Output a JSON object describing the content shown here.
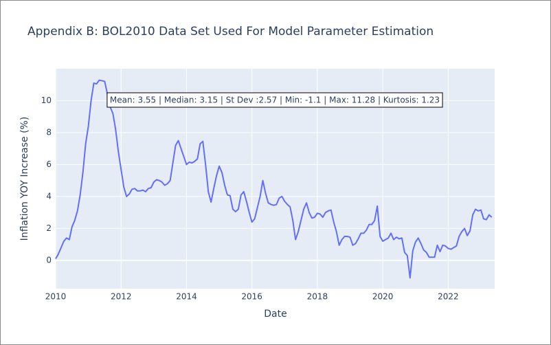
{
  "chart_data": {
    "type": "line",
    "title": "Appendix B: BOL2010 Data Set Used For Model Parameter Estimation",
    "x_label": "Date",
    "y_label": "Inflation YOY Increase (%)",
    "annotation": "Mean: 3.55 | Median: 3.15 | St Dev :2.57 | Min: -1.1 | Max: 11.28 | Kurtosis: 1.23",
    "x": [
      2010,
      2010.083,
      2010.167,
      2010.25,
      2010.333,
      2010.417,
      2010.5,
      2010.583,
      2010.667,
      2010.75,
      2010.833,
      2010.917,
      2011,
      2011.083,
      2011.167,
      2011.25,
      2011.333,
      2011.417,
      2011.5,
      2011.583,
      2011.667,
      2011.75,
      2011.833,
      2011.917,
      2012,
      2012.083,
      2012.167,
      2012.25,
      2012.333,
      2012.417,
      2012.5,
      2012.583,
      2012.667,
      2012.75,
      2012.833,
      2012.917,
      2013,
      2013.083,
      2013.167,
      2013.25,
      2013.333,
      2013.417,
      2013.5,
      2013.583,
      2013.667,
      2013.75,
      2013.833,
      2013.917,
      2014,
      2014.083,
      2014.167,
      2014.25,
      2014.333,
      2014.417,
      2014.5,
      2014.583,
      2014.667,
      2014.75,
      2014.833,
      2014.917,
      2015,
      2015.083,
      2015.167,
      2015.25,
      2015.333,
      2015.417,
      2015.5,
      2015.583,
      2015.667,
      2015.75,
      2015.833,
      2015.917,
      2016,
      2016.083,
      2016.167,
      2016.25,
      2016.333,
      2016.417,
      2016.5,
      2016.583,
      2016.667,
      2016.75,
      2016.833,
      2016.917,
      2017,
      2017.083,
      2017.167,
      2017.25,
      2017.333,
      2017.417,
      2017.5,
      2017.583,
      2017.667,
      2017.75,
      2017.833,
      2017.917,
      2018,
      2018.083,
      2018.167,
      2018.25,
      2018.333,
      2018.417,
      2018.5,
      2018.583,
      2018.667,
      2018.75,
      2018.833,
      2018.917,
      2019,
      2019.083,
      2019.167,
      2019.25,
      2019.333,
      2019.417,
      2019.5,
      2019.583,
      2019.667,
      2019.75,
      2019.833,
      2019.917,
      2020,
      2020.083,
      2020.167,
      2020.25,
      2020.333,
      2020.417,
      2020.5,
      2020.583,
      2020.667,
      2020.75,
      2020.833,
      2020.917,
      2021,
      2021.083,
      2021.167,
      2021.25,
      2021.333,
      2021.417,
      2021.5,
      2021.583,
      2021.667,
      2021.75,
      2021.833,
      2021.917,
      2022,
      2022.083,
      2022.167,
      2022.25,
      2022.333,
      2022.417,
      2022.5,
      2022.583,
      2022.667,
      2022.75,
      2022.833,
      2022.917,
      2023,
      2023.083,
      2023.167,
      2023.25,
      2023.333
    ],
    "series": [
      {
        "color": "#636efa",
        "values": [
          0.1,
          0.4,
          0.8,
          1.2,
          1.4,
          1.3,
          2.1,
          2.5,
          3.1,
          4.1,
          5.5,
          7.3,
          8.4,
          10.0,
          11.1,
          11.05,
          11.28,
          11.25,
          11.2,
          10.4,
          9.6,
          9.2,
          8.2,
          6.8,
          5.7,
          4.6,
          4.0,
          4.15,
          4.45,
          4.5,
          4.35,
          4.35,
          4.4,
          4.3,
          4.5,
          4.55,
          4.9,
          5.05,
          5.0,
          4.9,
          4.7,
          4.8,
          5.0,
          6.1,
          7.2,
          7.5,
          7.0,
          6.5,
          6.0,
          6.15,
          6.1,
          6.2,
          6.35,
          7.3,
          7.45,
          6.0,
          4.3,
          3.65,
          4.5,
          5.3,
          5.9,
          5.5,
          4.7,
          4.1,
          4.05,
          3.2,
          3.05,
          3.2,
          4.1,
          4.3,
          3.7,
          3.0,
          2.4,
          2.6,
          3.3,
          4.0,
          5.0,
          4.2,
          3.6,
          3.5,
          3.45,
          3.5,
          3.9,
          4.0,
          3.7,
          3.5,
          3.35,
          2.5,
          1.3,
          1.8,
          2.5,
          3.2,
          3.6,
          3.0,
          2.65,
          2.7,
          2.95,
          2.9,
          2.7,
          3.0,
          3.1,
          3.15,
          2.4,
          1.8,
          0.95,
          1.3,
          1.5,
          1.5,
          1.45,
          0.95,
          1.05,
          1.35,
          1.7,
          1.7,
          1.9,
          2.25,
          2.25,
          2.5,
          3.4,
          1.5,
          1.2,
          1.3,
          1.4,
          1.7,
          1.3,
          1.45,
          1.35,
          1.4,
          0.5,
          0.3,
          -1.1,
          0.6,
          1.15,
          1.4,
          1.05,
          0.65,
          0.5,
          0.2,
          0.2,
          0.2,
          0.95,
          0.55,
          0.95,
          0.9,
          0.75,
          0.7,
          0.8,
          0.9,
          1.5,
          1.8,
          2.0,
          1.55,
          1.85,
          2.85,
          3.2,
          3.1,
          3.15,
          2.6,
          2.55,
          2.85,
          2.7
        ]
      }
    ],
    "xlim": [
      2010,
      2023.42
    ],
    "xticks": [
      2010,
      2012,
      2014,
      2016,
      2018,
      2020,
      2022
    ],
    "ylim": [
      -1.77,
      12.0
    ],
    "yticks": [
      0,
      2,
      4,
      6,
      8,
      10
    ],
    "grid": true
  }
}
